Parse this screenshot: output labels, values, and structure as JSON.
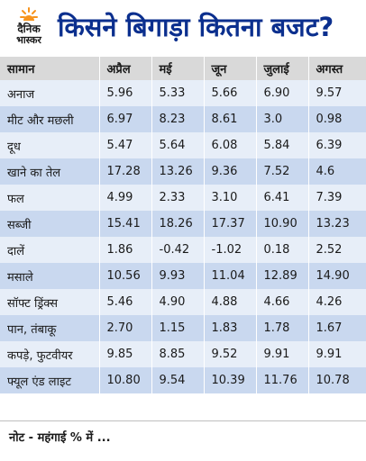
{
  "brand": {
    "line1": "दैनिक",
    "line2": "भास्कर",
    "sun_color": "#f7941d"
  },
  "title": "किसने बिगाड़ा कितना बजट?",
  "table": {
    "headers": [
      "सामान",
      "अप्रैल",
      "मई",
      "जून",
      "जुलाई",
      "अगस्त"
    ],
    "rows": [
      [
        "अनाज",
        "5.96",
        "5.33",
        "5.66",
        "6.90",
        "9.57"
      ],
      [
        "मीट और मछली",
        "6.97",
        "8.23",
        "8.61",
        "3.0",
        "0.98"
      ],
      [
        "दूध",
        "5.47",
        "5.64",
        "6.08",
        "5.84",
        "6.39"
      ],
      [
        "खाने का तेल",
        "17.28",
        "13.26",
        "9.36",
        "7.52",
        "4.6"
      ],
      [
        "फल",
        "4.99",
        "2.33",
        "3.10",
        "6.41",
        "7.39"
      ],
      [
        "सब्जी",
        "15.41",
        "18.26",
        "17.37",
        "10.90",
        "13.23"
      ],
      [
        "दालें",
        "1.86",
        "-0.42",
        "-1.02",
        "0.18",
        "2.52"
      ],
      [
        "मसाले",
        "10.56",
        "9.93",
        "11.04",
        "12.89",
        "14.90"
      ],
      [
        "सॉफ्ट ड्रिंक्स",
        "5.46",
        "4.90",
        "4.88",
        "4.66",
        "4.26"
      ],
      [
        "पान, तंबाकू",
        "2.70",
        "1.15",
        "1.83",
        "1.78",
        "1.67"
      ],
      [
        "कपड़े, फुटवीयर",
        "9.85",
        "8.85",
        "9.52",
        "9.91",
        "9.91"
      ],
      [
        "फ्यूल एंड लाइट",
        "10.80",
        "9.54",
        "10.39",
        "11.76",
        "10.78"
      ]
    ]
  },
  "note": "नोट - महंगाई % में ..."
}
